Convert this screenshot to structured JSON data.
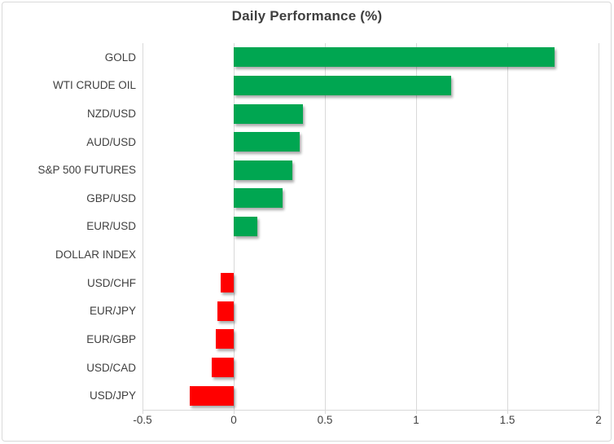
{
  "colors": {
    "positive_bar": "#00A651",
    "negative_bar": "#FF0000",
    "gridline": "#D9D9D9",
    "text": "#404040"
  },
  "chart_data": {
    "type": "bar",
    "orientation": "horizontal",
    "title": "Daily Performance (%)",
    "categories": [
      "GOLD",
      "WTI CRUDE OIL",
      "NZD/USD",
      "AUD/USD",
      "S&P 500 FUTURES",
      "GBP/USD",
      "EUR/USD",
      "DOLLAR INDEX",
      "USD/CHF",
      "EUR/JPY",
      "EUR/GBP",
      "USD/CAD",
      "USD/JPY"
    ],
    "values": [
      1.76,
      1.19,
      0.38,
      0.36,
      0.32,
      0.27,
      0.13,
      0.0,
      -0.07,
      -0.09,
      -0.1,
      -0.12,
      -0.24
    ],
    "xlabel": "",
    "ylabel": "",
    "xlim": [
      -0.5,
      2.0
    ],
    "xticks": [
      -0.5,
      0,
      0.5,
      1,
      1.5,
      2
    ],
    "xtick_labels": [
      "-0.5",
      "0",
      "0.5",
      "1",
      "1.5",
      "2"
    ],
    "grid": "vertical-only",
    "legend": "none",
    "bar_color_rule": "green if value > 0, red if value < 0, no bar if 0"
  }
}
